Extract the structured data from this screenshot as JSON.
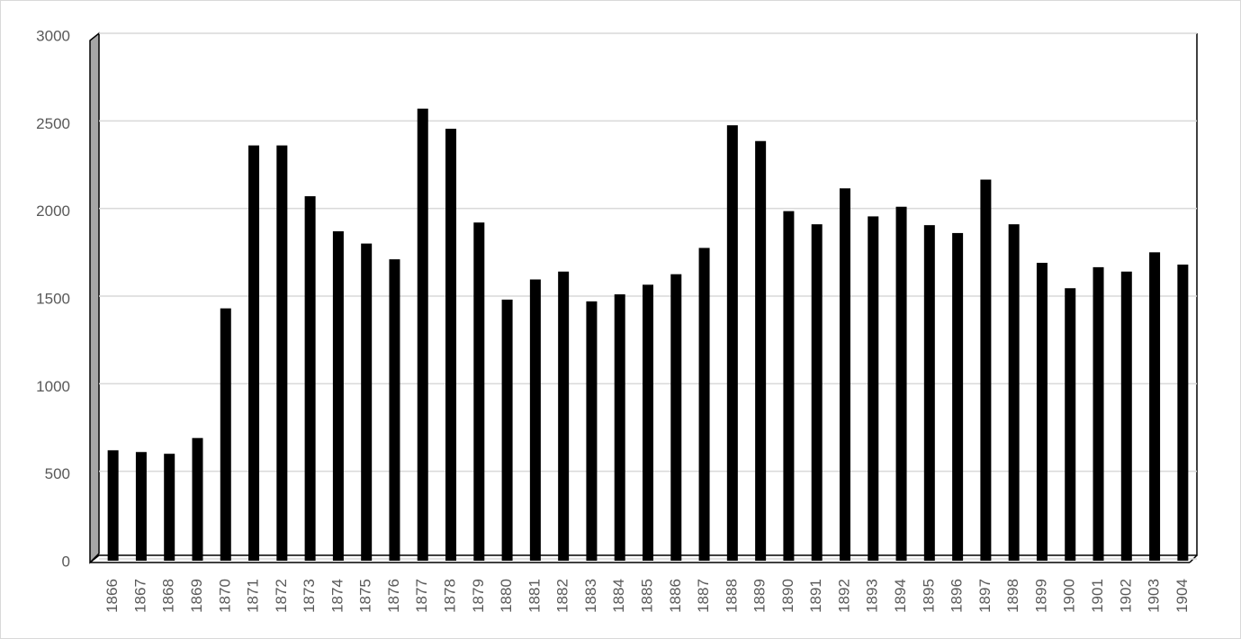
{
  "chart_data": {
    "type": "bar",
    "categories": [
      "1866",
      "1867",
      "1868",
      "1869",
      "1870",
      "1871",
      "1872",
      "1873",
      "1874",
      "1875",
      "1876",
      "1877",
      "1878",
      "1879",
      "1880",
      "1881",
      "1882",
      "1883",
      "1884",
      "1885",
      "1886",
      "1887",
      "1888",
      "1889",
      "1890",
      "1891",
      "1892",
      "1893",
      "1894",
      "1895",
      "1896",
      "1897",
      "1898",
      "1899",
      "1900",
      "1901",
      "1902",
      "1903",
      "1904"
    ],
    "values": [
      620,
      610,
      600,
      690,
      1430,
      2360,
      2360,
      2070,
      1870,
      1800,
      1710,
      2570,
      2455,
      1920,
      1480,
      1595,
      1640,
      1470,
      1510,
      1565,
      1625,
      1775,
      2475,
      2385,
      1985,
      1910,
      2115,
      1955,
      2010,
      1905,
      1860,
      2165,
      1910,
      1690,
      1545,
      1665,
      1640,
      1750,
      1680
    ],
    "color": "#000000",
    "ylim": [
      0,
      3000
    ],
    "yticks": [
      0,
      500,
      1000,
      1500,
      2000,
      2500,
      3000
    ],
    "grid": true
  }
}
